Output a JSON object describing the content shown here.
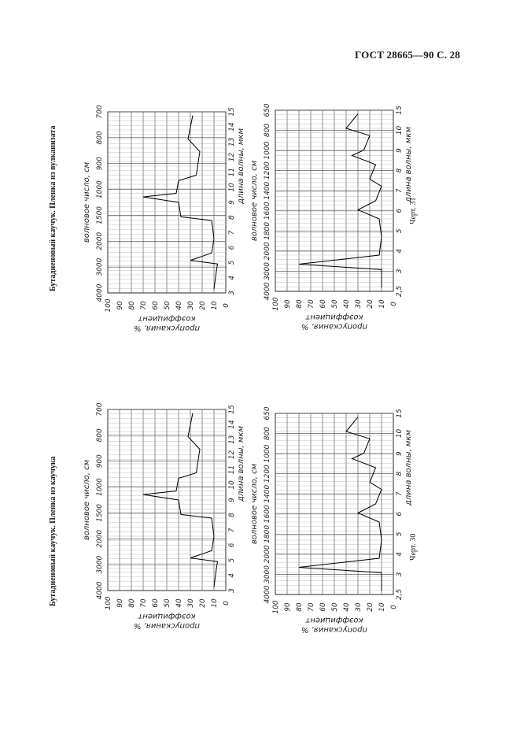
{
  "header": "ГОСТ 28665—90 С. 28",
  "sections": [
    {
      "title": "Бутадиеновый каучук. Пленка из каучука",
      "caption": "Черт. 30",
      "axis": {
        "wavenumber_label": "волновое  число, см",
        "wavelength_label": "длина  волны, мкм",
        "transmission_label_1": "коэффициент",
        "transmission_label_2": "пропускания, %"
      },
      "top_chart": {
        "wavenumber_ticks": [
          "4000",
          "3000",
          "2000",
          "1500",
          "1000",
          "900",
          "800",
          "700"
        ],
        "wavelength_ticks": [
          "3",
          "4",
          "5",
          "6",
          "7",
          "8",
          "9",
          "10",
          "11",
          "12",
          "13",
          "14",
          "15"
        ],
        "transmission_ticks": [
          "100",
          "90",
          "80",
          "70",
          "60",
          "50",
          "40",
          "30",
          "20",
          "10",
          "0"
        ]
      },
      "bottom_chart": {
        "wavenumber_ticks": [
          "4000",
          "3000",
          "2000",
          "1800",
          "1600",
          "1400",
          "1200",
          "1000",
          "800",
          "650"
        ],
        "wavelength_ticks": [
          "2,5",
          "3",
          "4",
          "5",
          "6",
          "7",
          "8",
          "9",
          "10",
          "15"
        ],
        "transmission_ticks": [
          "100",
          "90",
          "80",
          "70",
          "60",
          "50",
          "40",
          "30",
          "20",
          "10",
          "0"
        ]
      }
    },
    {
      "title": "Бутадиеновый каучук. Пленка из вулканизата",
      "caption": "Черт. 31",
      "axis": {
        "wavenumber_label": "волновое  число, см",
        "wavelength_label": "длина  волны, мкм",
        "transmission_label_1": "коэффициент",
        "transmission_label_2": "пропускания, %"
      },
      "top_chart": {
        "wavenumber_ticks": [
          "4000",
          "3000",
          "2000",
          "1500",
          "1000",
          "900",
          "800",
          "700"
        ],
        "wavelength_ticks": [
          "3",
          "4",
          "5",
          "6",
          "7",
          "8",
          "9",
          "10",
          "11",
          "12",
          "13",
          "14",
          "15"
        ],
        "transmission_ticks": [
          "100",
          "90",
          "80",
          "70",
          "60",
          "50",
          "40",
          "30",
          "20",
          "10",
          "0"
        ]
      },
      "bottom_chart": {
        "wavenumber_ticks": [
          "4000",
          "3000",
          "2000",
          "1800",
          "1600",
          "1400",
          "1200",
          "1000",
          "800",
          "650"
        ],
        "wavelength_ticks": [
          "2,5",
          "3",
          "4",
          "5",
          "6",
          "7",
          "8",
          "9",
          "10",
          "15"
        ],
        "transmission_ticks": [
          "100",
          "90",
          "80",
          "70",
          "60",
          "50",
          "40",
          "30",
          "20",
          "10",
          "0"
        ]
      }
    }
  ]
}
